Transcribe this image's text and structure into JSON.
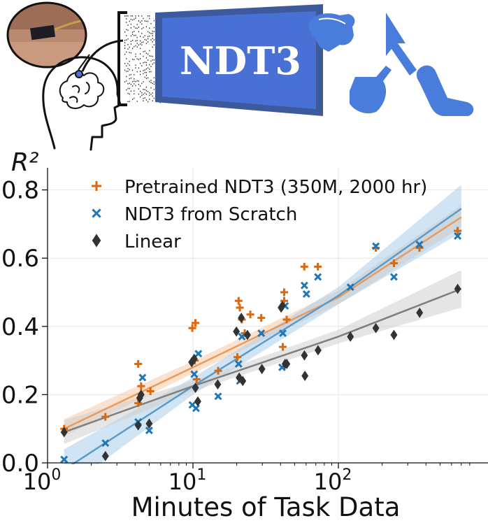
{
  "banner": {
    "model_label": "NDT3",
    "colors": {
      "model_box": "#4a72d8",
      "model_shadow": "#3d5a9c",
      "effectors": "#4a7ddb"
    }
  },
  "chart_data": {
    "type": "scatter",
    "x_scale": "log",
    "xlim": [
      1,
      800
    ],
    "ylim": [
      0,
      0.83
    ],
    "xlabel": "Minutes of Task Data",
    "ylabel": "R²",
    "grid": true,
    "legend_placement": "upper-left",
    "x_ticks": [
      {
        "value": 1,
        "base": "10",
        "exp": "0"
      },
      {
        "value": 10,
        "base": "10",
        "exp": "1"
      },
      {
        "value": 100,
        "base": "10",
        "exp": "2"
      }
    ],
    "y_ticks": [
      {
        "value": 0.0,
        "label": "0.0"
      },
      {
        "value": 0.2,
        "label": "0.2"
      },
      {
        "value": 0.4,
        "label": "0.4"
      },
      {
        "value": 0.6,
        "label": "0.6"
      },
      {
        "value": 0.8,
        "label": "0.8"
      }
    ],
    "series": [
      {
        "name": "Pretrained NDT3 (350M, 2000 hr)",
        "marker": "plus",
        "color": "#d9690e",
        "fit_color": "#e89b5f",
        "band_color": "#f6caa6",
        "points": [
          [
            1.3,
            0.1
          ],
          [
            2.5,
            0.135
          ],
          [
            4.2,
            0.29
          ],
          [
            4.2,
            0.175
          ],
          [
            4.4,
            0.225
          ],
          [
            5.1,
            0.21
          ],
          [
            9.9,
            0.395
          ],
          [
            10.4,
            0.41
          ],
          [
            10.3,
            0.3
          ],
          [
            10.6,
            0.245
          ],
          [
            14.9,
            0.27
          ],
          [
            20.2,
            0.31
          ],
          [
            20.6,
            0.475
          ],
          [
            21.0,
            0.455
          ],
          [
            21.7,
            0.42
          ],
          [
            22.7,
            0.38
          ],
          [
            24.8,
            0.435
          ],
          [
            29.5,
            0.425
          ],
          [
            41.5,
            0.34
          ],
          [
            42.4,
            0.475
          ],
          [
            42.4,
            0.5
          ],
          [
            44.1,
            0.42
          ],
          [
            58.3,
            0.575
          ],
          [
            72.3,
            0.575
          ],
          [
            181,
            0.63
          ],
          [
            241,
            0.585
          ],
          [
            361,
            0.63
          ],
          [
            661,
            0.68
          ]
        ],
        "fit": [
          [
            1.3,
            0.1
          ],
          [
            10,
            0.28
          ],
          [
            100,
            0.485
          ],
          [
            700,
            0.72
          ]
        ],
        "band": [
          [
            1.3,
            0.078,
            0.128
          ],
          [
            10,
            0.262,
            0.298
          ],
          [
            100,
            0.465,
            0.505
          ],
          [
            700,
            0.69,
            0.755
          ]
        ]
      },
      {
        "name": "NDT3 from Scratch",
        "marker": "x",
        "color": "#1f77b4",
        "fit_color": "#5a9bcd",
        "band_color": "#aacde9",
        "points": [
          [
            1.3,
            0.01
          ],
          [
            2.5,
            0.058
          ],
          [
            4.2,
            0.12
          ],
          [
            4.5,
            0.25
          ],
          [
            5.0,
            0.095
          ],
          [
            9.9,
            0.17
          ],
          [
            10.2,
            0.26
          ],
          [
            10.5,
            0.16
          ],
          [
            10.9,
            0.32
          ],
          [
            14.9,
            0.195
          ],
          [
            20.6,
            0.29
          ],
          [
            21.0,
            0.24
          ],
          [
            21.7,
            0.37
          ],
          [
            29.5,
            0.38
          ],
          [
            41.0,
            0.28
          ],
          [
            41.5,
            0.38
          ],
          [
            43.0,
            0.46
          ],
          [
            58.4,
            0.52
          ],
          [
            60.3,
            0.495
          ],
          [
            72.3,
            0.545
          ],
          [
            121,
            0.515
          ],
          [
            181,
            0.635
          ],
          [
            241,
            0.545
          ],
          [
            361,
            0.64
          ],
          [
            661,
            0.665
          ]
        ],
        "fit": [
          [
            1.3,
            -0.02
          ],
          [
            10,
            0.225
          ],
          [
            100,
            0.49
          ],
          [
            700,
            0.745
          ]
        ],
        "band": [
          [
            1.3,
            -0.08,
            0.04
          ],
          [
            10,
            0.2,
            0.25
          ],
          [
            100,
            0.465,
            0.515
          ],
          [
            700,
            0.675,
            0.815
          ]
        ]
      },
      {
        "name": "Linear",
        "marker": "diamond",
        "color": "#333333",
        "fit_color": "#7f7f7f",
        "band_color": "#cfcfcf",
        "points": [
          [
            1.3,
            0.09
          ],
          [
            2.5,
            0.02
          ],
          [
            4.2,
            0.11
          ],
          [
            4.3,
            0.19
          ],
          [
            4.4,
            0.2
          ],
          [
            5.0,
            0.115
          ],
          [
            9.8,
            0.295
          ],
          [
            10.2,
            0.305
          ],
          [
            10.4,
            0.22
          ],
          [
            10.8,
            0.18
          ],
          [
            14.8,
            0.23
          ],
          [
            19.9,
            0.385
          ],
          [
            20.8,
            0.25
          ],
          [
            21.5,
            0.425
          ],
          [
            22.0,
            0.24
          ],
          [
            23.7,
            0.375
          ],
          [
            29.8,
            0.275
          ],
          [
            40.4,
            0.455
          ],
          [
            41.2,
            0.46
          ],
          [
            43.0,
            0.29
          ],
          [
            44.2,
            0.29
          ],
          [
            58.4,
            0.315
          ],
          [
            58.9,
            0.255
          ],
          [
            72.5,
            0.33
          ],
          [
            121,
            0.37
          ],
          [
            181,
            0.395
          ],
          [
            241,
            0.375
          ],
          [
            362,
            0.44
          ],
          [
            661,
            0.51
          ]
        ],
        "fit": [
          [
            1.3,
            0.09
          ],
          [
            10,
            0.225
          ],
          [
            100,
            0.37
          ],
          [
            700,
            0.51
          ]
        ],
        "band": [
          [
            1.3,
            0.055,
            0.125
          ],
          [
            10,
            0.21,
            0.24
          ],
          [
            100,
            0.35,
            0.39
          ],
          [
            700,
            0.455,
            0.565
          ]
        ]
      }
    ]
  }
}
